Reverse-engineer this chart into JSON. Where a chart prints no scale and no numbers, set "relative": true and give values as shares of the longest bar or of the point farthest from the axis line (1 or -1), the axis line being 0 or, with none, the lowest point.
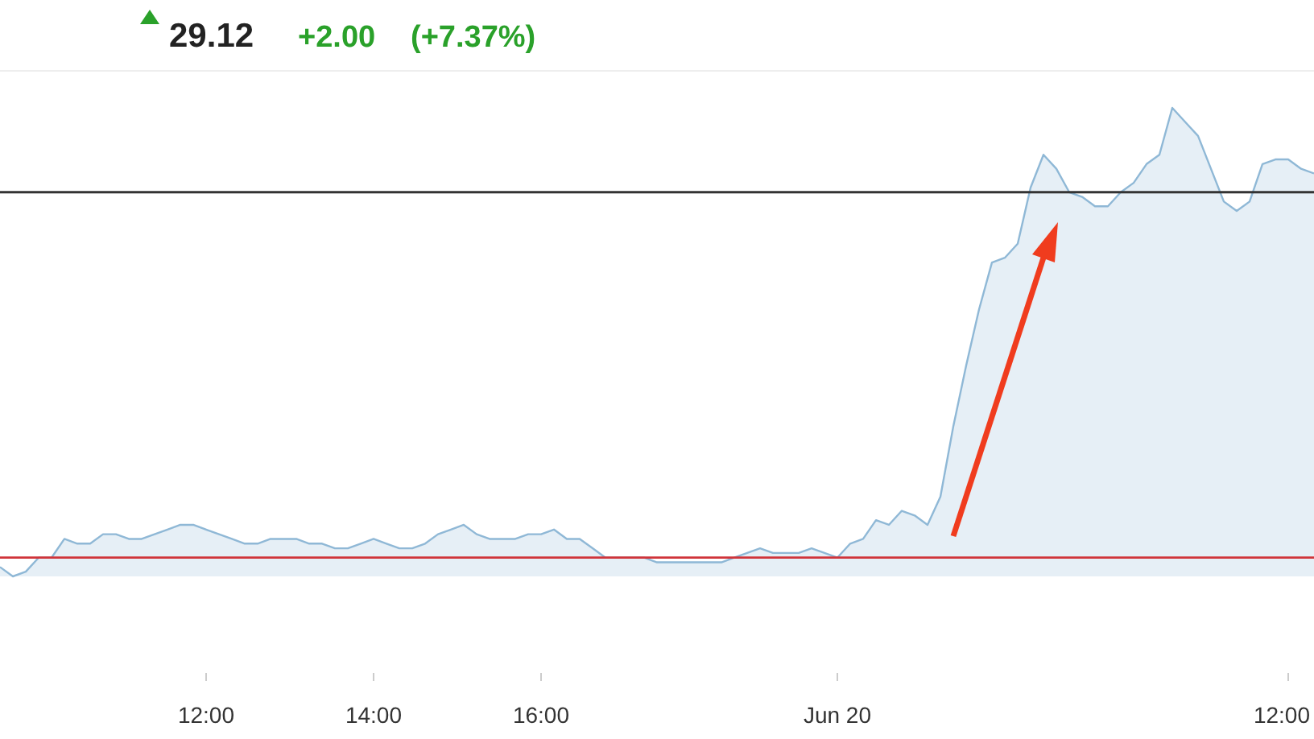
{
  "chart_data": {
    "type": "area",
    "title": "29.12",
    "annotations": [
      "+2.00",
      "(+7.37%)"
    ],
    "relative": true,
    "tick_labels": "x",
    "categories": [
      null,
      null,
      null,
      null,
      null,
      null,
      null,
      null,
      null,
      null,
      null,
      null,
      null,
      null,
      null,
      null,
      "12:00",
      null,
      null,
      null,
      null,
      null,
      null,
      null,
      null,
      null,
      null,
      null,
      null,
      "14:00",
      null,
      null,
      null,
      null,
      null,
      null,
      null,
      null,
      null,
      null,
      null,
      null,
      "16:00",
      null,
      null,
      null,
      null,
      null,
      null,
      null,
      null,
      null,
      null,
      null,
      null,
      null,
      null,
      null,
      null,
      null,
      null,
      null,
      null,
      null,
      null,
      "Jun 20",
      null,
      null,
      null,
      null,
      null,
      null,
      null,
      null,
      null,
      null,
      null,
      null,
      null,
      null,
      null,
      null,
      null,
      null,
      null,
      null,
      null,
      null,
      null,
      null,
      null,
      null,
      null,
      null,
      null,
      null,
      null,
      null,
      null,
      null,
      "12:00",
      null,
      null
    ],
    "series": [
      {
        "color": "#8fb8d6",
        "values": [
          0.02,
          0,
          0.01,
          0.04,
          0.04,
          0.08,
          0.07,
          0.07,
          0.09,
          0.09,
          0.08,
          0.08,
          0.09,
          0.1,
          0.11,
          0.11,
          0.1,
          0.09,
          0.08,
          0.07,
          0.07,
          0.08,
          0.08,
          0.08,
          0.07,
          0.07,
          0.06,
          0.06,
          0.07,
          0.08,
          0.07,
          0.06,
          0.06,
          0.07,
          0.09,
          0.1,
          0.11,
          0.09,
          0.08,
          0.08,
          0.08,
          0.09,
          0.09,
          0.1,
          0.08,
          0.08,
          0.06,
          0.04,
          0.04,
          0.04,
          0.04,
          0.03,
          0.03,
          0.03,
          0.03,
          0.03,
          0.03,
          0.04,
          0.05,
          0.06,
          0.05,
          0.05,
          0.05,
          0.06,
          0.05,
          0.04,
          0.07,
          0.08,
          0.12,
          0.11,
          0.14,
          0.13,
          0.11,
          0.17,
          0.32,
          0.45,
          0.57,
          0.67,
          0.68,
          0.71,
          0.83,
          0.9,
          0.87,
          0.82,
          0.81,
          0.79,
          0.79,
          0.82,
          0.84,
          0.88,
          0.9,
          1,
          0.97,
          0.94,
          0.87,
          0.8,
          0.78,
          0.8,
          0.88,
          0.89,
          0.89,
          0.87,
          0.86
        ]
      },
      {
        "type": "line",
        "color": "#333333",
        "values": [
          0.82,
          0.82,
          0.82,
          0.82,
          0.82,
          0.82,
          0.82,
          0.82,
          0.82,
          0.82,
          0.82,
          0.82,
          0.82,
          0.82,
          0.82,
          0.82,
          0.82,
          0.82,
          0.82,
          0.82,
          0.82,
          0.82,
          0.82,
          0.82,
          0.82,
          0.82,
          0.82,
          0.82,
          0.82,
          0.82,
          0.82,
          0.82,
          0.82,
          0.82,
          0.82,
          0.82,
          0.82,
          0.82,
          0.82,
          0.82,
          0.82,
          0.82,
          0.82,
          0.82,
          0.82,
          0.82,
          0.82,
          0.82,
          0.82,
          0.82,
          0.82,
          0.82,
          0.82,
          0.82,
          0.82,
          0.82,
          0.82,
          0.82,
          0.82,
          0.82,
          0.82,
          0.82,
          0.82,
          0.82,
          0.82,
          0.82,
          0.82,
          0.82,
          0.82,
          0.82,
          0.82,
          0.82,
          0.82,
          0.82,
          0.82,
          0.82,
          0.82,
          0.82,
          0.82,
          0.82,
          0.82,
          0.82,
          0.82,
          0.82,
          0.82,
          0.82,
          0.82,
          0.82,
          0.82,
          0.82,
          0.82,
          0.82,
          0.82,
          0.82,
          0.82,
          0.82,
          0.82,
          0.82,
          0.82,
          0.82,
          0.82,
          0.82,
          0.82
        ]
      },
      {
        "type": "line",
        "color": "#d0343a",
        "values": [
          0.04,
          0.04,
          0.04,
          0.04,
          0.04,
          0.04,
          0.04,
          0.04,
          0.04,
          0.04,
          0.04,
          0.04,
          0.04,
          0.04,
          0.04,
          0.04,
          0.04,
          0.04,
          0.04,
          0.04,
          0.04,
          0.04,
          0.04,
          0.04,
          0.04,
          0.04,
          0.04,
          0.04,
          0.04,
          0.04,
          0.04,
          0.04,
          0.04,
          0.04,
          0.04,
          0.04,
          0.04,
          0.04,
          0.04,
          0.04,
          0.04,
          0.04,
          0.04,
          0.04,
          0.04,
          0.04,
          0.04,
          0.04,
          0.04,
          0.04,
          0.04,
          0.04,
          0.04,
          0.04,
          0.04,
          0.04,
          0.04,
          0.04,
          0.04,
          0.04,
          0.04,
          0.04,
          0.04,
          0.04,
          0.04,
          0.04,
          0.04,
          0.04,
          0.04,
          0.04,
          0.04,
          0.04,
          0.04,
          0.04,
          0.04,
          0.04,
          0.04,
          0.04,
          0.04,
          0.04,
          0.04,
          0.04,
          0.04,
          0.04,
          0.04,
          0.04,
          0.04,
          0.04,
          0.04,
          0.04,
          0.04,
          0.04,
          0.04,
          0.04,
          0.04,
          0.04,
          0.04,
          0.04,
          0.04,
          0.04,
          0.04,
          0.04,
          0.04
        ]
      }
    ]
  }
}
